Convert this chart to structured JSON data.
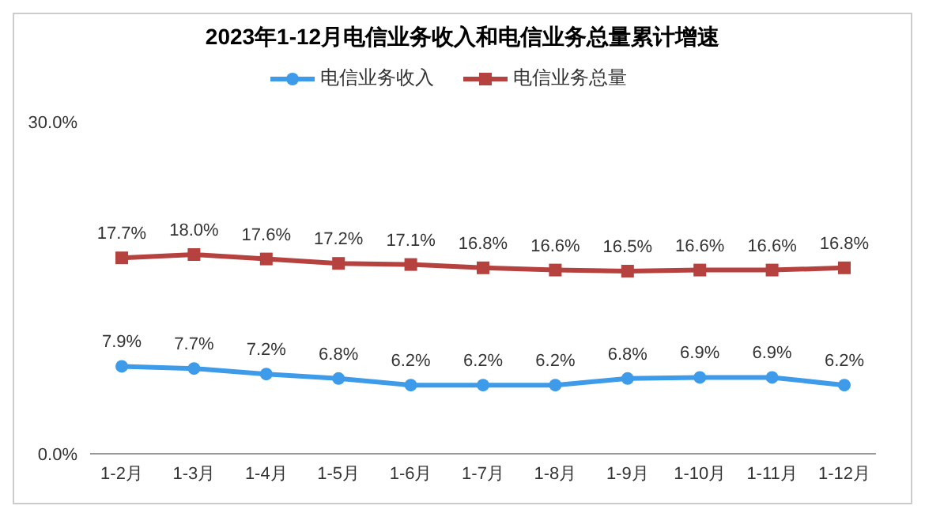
{
  "chart_data": {
    "type": "line",
    "title": "2023年1-12月电信业务收入和电信业务总量累计增速",
    "categories": [
      "1-2月",
      "1-3月",
      "1-4月",
      "1-5月",
      "1-6月",
      "1-7月",
      "1-8月",
      "1-9月",
      "1-10月",
      "1-11月",
      "1-12月"
    ],
    "series": [
      {
        "name": "电信业务收入",
        "color": "#3d9be9",
        "marker": "circle",
        "values": [
          7.9,
          7.7,
          7.2,
          6.8,
          6.2,
          6.2,
          6.2,
          6.8,
          6.9,
          6.9,
          6.2
        ],
        "value_labels": [
          "7.9%",
          "7.7%",
          "7.2%",
          "6.8%",
          "6.2%",
          "6.2%",
          "6.2%",
          "6.8%",
          "6.9%",
          "6.9%",
          "6.2%"
        ]
      },
      {
        "name": "电信业务总量",
        "color": "#b5423f",
        "marker": "square",
        "values": [
          17.7,
          18.0,
          17.6,
          17.2,
          17.1,
          16.8,
          16.6,
          16.5,
          16.6,
          16.6,
          16.8
        ],
        "value_labels": [
          "17.7%",
          "18.0%",
          "17.6%",
          "17.2%",
          "17.1%",
          "16.8%",
          "16.6%",
          "16.5%",
          "16.6%",
          "16.6%",
          "16.8%"
        ]
      }
    ],
    "ylim": [
      0,
      30
    ],
    "yticks": [
      {
        "value": 0,
        "label": "0.0%"
      },
      {
        "value": 30,
        "label": "30.0%"
      }
    ],
    "grid": false,
    "legend": "top",
    "line_style": "solid"
  }
}
